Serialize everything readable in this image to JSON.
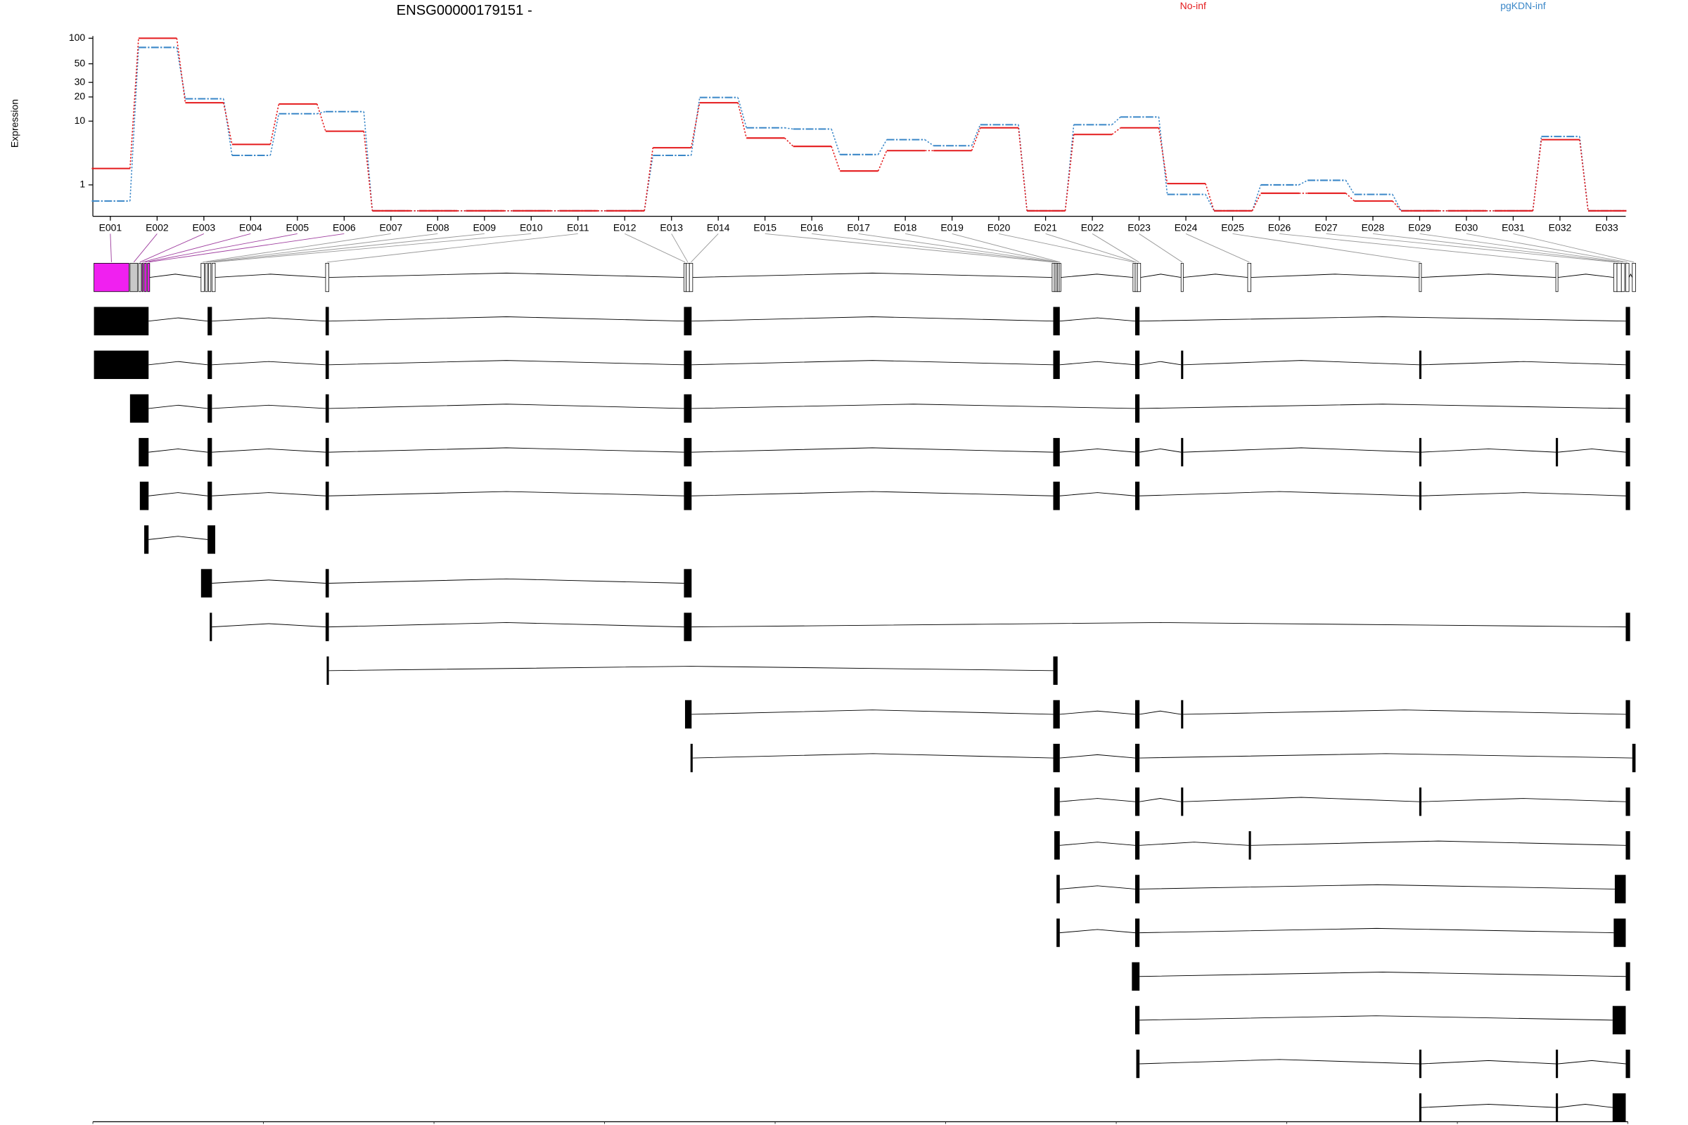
{
  "chart_data": {
    "type": "line",
    "title": "ENSG00000179151 -",
    "y_label": "Expression",
    "y_scale": "log1p",
    "step": true,
    "legend": "top-right",
    "categories": [
      "E001",
      "E002",
      "E003",
      "E004",
      "E005",
      "E006",
      "E007",
      "E008",
      "E009",
      "E010",
      "E011",
      "E012",
      "E013",
      "E014",
      "E015",
      "E016",
      "E017",
      "E018",
      "E019",
      "E020",
      "E021",
      "E022",
      "E023",
      "E024",
      "E025",
      "E026",
      "E027",
      "E028",
      "E029",
      "E030",
      "E031",
      "E032",
      "E033"
    ],
    "series": [
      {
        "name": "pgKDN-inf",
        "color": "#3a87c8",
        "values": [
          0.3,
          78,
          19,
          3.4,
          12.4,
          13.2,
          0,
          0,
          0,
          0,
          0,
          0,
          3.4,
          19.7,
          8.2,
          7.9,
          3.5,
          5.7,
          4.7,
          9,
          0,
          9,
          11.3,
          0.55,
          0,
          1,
          1.26,
          0.55,
          0,
          0,
          0,
          6.3,
          0
        ]
      },
      {
        "name": "No-inf",
        "color": "#e41a1c",
        "values": [
          2.1,
          100,
          17,
          4.9,
          16.4,
          7.4,
          0,
          0,
          0,
          0,
          0,
          0,
          4.4,
          17,
          6,
          4.6,
          1.9,
          4,
          4,
          8.2,
          0,
          6.7,
          8.2,
          1.07,
          0,
          0.6,
          0.6,
          0.3,
          0,
          0,
          0,
          5.7,
          0
        ]
      }
    ],
    "ylim": [
      0,
      100
    ],
    "yticks": [
      1,
      10,
      20,
      30,
      50,
      100
    ],
    "genomic_axis": {
      "xlim": [
        74630558,
        74696292
      ],
      "xticks": [
        74630558,
        74637862,
        74645166,
        74652469,
        74659773,
        74667077,
        74674381,
        74681684,
        74688988,
        74696292
      ]
    }
  }
}
